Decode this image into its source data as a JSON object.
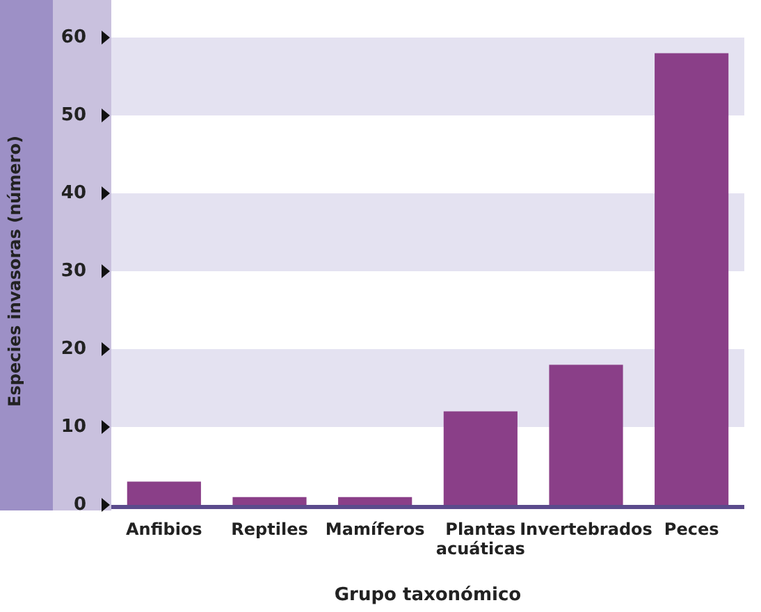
{
  "chart_data": {
    "type": "bar",
    "xlabel": "Grupo taxonómico",
    "ylabel": "Especies invasoras (número)",
    "categories": [
      "Anfibios",
      "Reptiles",
      "Mamíferos",
      "Plantas acuáticas",
      "Invertebrados",
      "Peces"
    ],
    "values": [
      3,
      1,
      1,
      12,
      18,
      58
    ],
    "color": "#8a3f88",
    "ylim": [
      0,
      60
    ],
    "yticks": [
      0,
      10,
      20,
      30,
      40,
      50,
      60
    ],
    "legend": false,
    "bands": [
      {
        "axis": "y",
        "from": 10,
        "to": 20,
        "color": "#e4e2f1"
      },
      {
        "axis": "y",
        "from": 30,
        "to": 40,
        "color": "#e4e2f1"
      },
      {
        "axis": "y",
        "from": 50,
        "to": 60,
        "color": "#e4e2f1"
      }
    ]
  }
}
